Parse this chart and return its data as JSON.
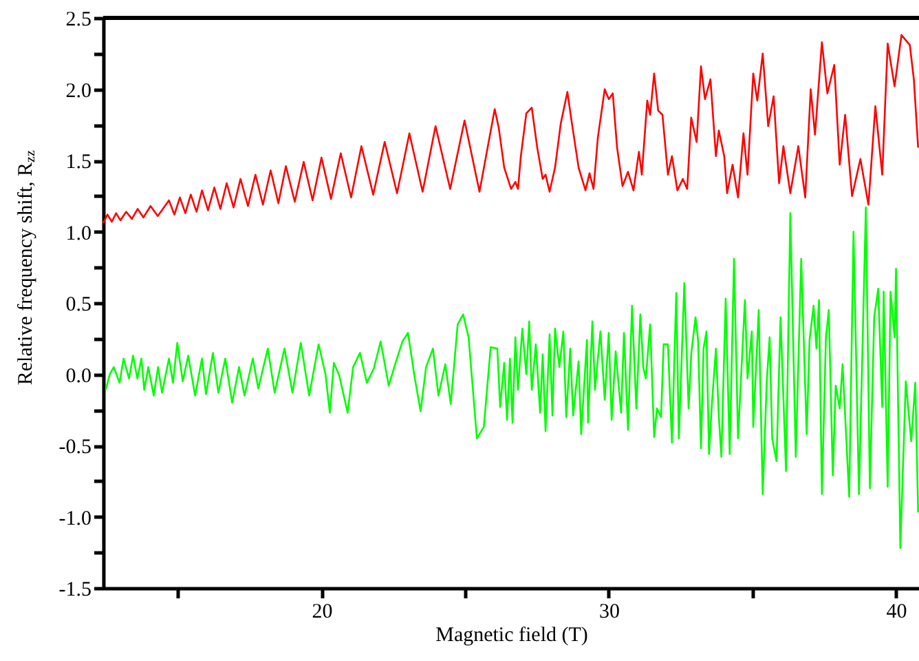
{
  "chart_data": {
    "type": "line",
    "xlabel": "Magnetic field (T)",
    "ylabel": "Relative frequency shift, R$_{zz}$",
    "xlim": [
      12.4,
      40.8
    ],
    "ylim": [
      -1.5,
      2.5
    ],
    "xticks": [
      {
        "value": 15,
        "label": null
      },
      20,
      {
        "value": 25,
        "label": null
      },
      30,
      {
        "value": 35,
        "label": null
      },
      40
    ],
    "yticks": [
      {
        "value": -1.5,
        "label": "-1.5"
      },
      {
        "value": -1.25,
        "label": null
      },
      {
        "value": -1.0,
        "label": "-1.0"
      },
      {
        "value": -0.75,
        "label": null
      },
      {
        "value": -0.5,
        "label": "-0.5"
      },
      {
        "value": -0.25,
        "label": null
      },
      {
        "value": 0,
        "label": "0.0"
      },
      {
        "value": 0.25,
        "label": null
      },
      {
        "value": 0.5,
        "label": "0.5"
      },
      {
        "value": 0.75,
        "label": null
      },
      {
        "value": 1.0,
        "label": "1.0"
      },
      {
        "value": 1.25,
        "label": null
      },
      {
        "value": 1.5,
        "label": "1.5"
      },
      {
        "value": 1.75,
        "label": null
      },
      {
        "value": 2.0,
        "label": "2.0"
      },
      {
        "value": 2.25,
        "label": null
      },
      {
        "value": 2.5,
        "label": "2.5"
      }
    ],
    "grid": false,
    "line_style": "solid",
    "marker": "none",
    "series": [
      {
        "color": "#ff0000",
        "x": [
          12.4,
          12.55,
          12.7,
          12.85,
          13.0,
          13.2,
          13.4,
          13.6,
          13.8,
          14.05,
          14.3,
          14.69,
          14.88,
          15.07,
          15.26,
          15.45,
          15.65,
          15.84,
          16.05,
          16.27,
          16.48,
          16.7,
          16.94,
          17.18,
          17.44,
          17.7,
          17.96,
          18.23,
          18.5,
          18.76,
          19.07,
          19.38,
          19.69,
          20.0,
          20.33,
          20.67,
          21.03,
          21.39,
          21.8,
          22.2,
          22.63,
          23.06,
          23.52,
          23.97,
          24.48,
          24.98,
          25.5,
          26.03,
          26.17,
          26.36,
          26.6,
          26.75,
          26.84,
          26.94,
          27.13,
          27.32,
          27.51,
          27.7,
          27.8,
          27.94,
          28.13,
          28.33,
          28.56,
          28.71,
          28.95,
          29.19,
          29.33,
          29.47,
          29.62,
          29.86,
          30.0,
          30.14,
          30.29,
          30.48,
          30.67,
          30.86,
          31.05,
          31.15,
          31.34,
          31.44,
          31.58,
          31.72,
          31.87,
          32.06,
          32.2,
          32.39,
          32.58,
          32.73,
          32.87,
          33.06,
          33.21,
          33.35,
          33.54,
          33.73,
          33.83,
          34.02,
          34.12,
          34.31,
          34.5,
          34.69,
          34.83,
          35.03,
          35.17,
          35.36,
          35.55,
          35.74,
          35.93,
          36.08,
          36.32,
          36.6,
          36.84,
          37.03,
          37.18,
          37.42,
          37.61,
          37.85,
          38.04,
          38.23,
          38.47,
          38.76,
          39.04,
          39.28,
          39.52,
          39.71,
          39.95,
          40.19,
          40.48,
          40.62,
          40.77
        ],
        "values": [
          1.06,
          1.12,
          1.07,
          1.13,
          1.08,
          1.14,
          1.09,
          1.16,
          1.1,
          1.18,
          1.11,
          1.22,
          1.12,
          1.24,
          1.13,
          1.26,
          1.14,
          1.29,
          1.15,
          1.31,
          1.16,
          1.34,
          1.17,
          1.37,
          1.18,
          1.4,
          1.19,
          1.43,
          1.2,
          1.46,
          1.21,
          1.49,
          1.22,
          1.52,
          1.23,
          1.55,
          1.24,
          1.6,
          1.26,
          1.63,
          1.27,
          1.69,
          1.28,
          1.74,
          1.3,
          1.78,
          1.28,
          1.86,
          1.73,
          1.45,
          1.3,
          1.35,
          1.3,
          1.53,
          1.83,
          1.87,
          1.59,
          1.37,
          1.4,
          1.28,
          1.45,
          1.76,
          1.98,
          1.77,
          1.45,
          1.29,
          1.41,
          1.3,
          1.66,
          2.0,
          1.93,
          1.97,
          1.59,
          1.32,
          1.42,
          1.29,
          1.56,
          1.4,
          1.92,
          1.82,
          2.11,
          1.85,
          1.82,
          1.4,
          1.53,
          1.29,
          1.37,
          1.3,
          1.8,
          1.63,
          2.16,
          1.93,
          2.07,
          1.53,
          1.71,
          1.53,
          1.27,
          1.47,
          1.24,
          1.69,
          1.4,
          2.11,
          1.92,
          2.25,
          1.74,
          1.95,
          1.34,
          1.6,
          1.27,
          1.6,
          1.24,
          2.0,
          1.68,
          2.33,
          1.97,
          2.17,
          1.47,
          1.82,
          1.25,
          1.51,
          1.19,
          1.88,
          1.4,
          2.32,
          2.02,
          2.38,
          2.31,
          2.07,
          1.59
        ]
      },
      {
        "color": "#00ff00",
        "x": [
          12.49,
          12.63,
          12.77,
          12.97,
          13.11,
          13.3,
          13.44,
          13.59,
          13.73,
          13.83,
          13.97,
          14.16,
          14.31,
          14.45,
          14.69,
          14.83,
          14.98,
          15.17,
          15.36,
          15.6,
          15.84,
          15.98,
          16.22,
          16.41,
          16.65,
          16.89,
          17.13,
          17.32,
          17.61,
          17.8,
          18.13,
          18.37,
          18.71,
          18.99,
          19.28,
          19.57,
          19.9,
          20.14,
          20.29,
          20.43,
          20.62,
          20.91,
          21.1,
          21.34,
          21.58,
          21.82,
          22.06,
          22.34,
          22.58,
          22.82,
          23.01,
          23.25,
          23.45,
          23.64,
          23.88,
          24.07,
          24.31,
          24.5,
          24.74,
          24.93,
          25.12,
          25.41,
          25.65,
          25.89,
          26.12,
          26.22,
          26.36,
          26.46,
          26.56,
          26.65,
          26.75,
          26.84,
          26.99,
          27.13,
          27.23,
          27.32,
          27.46,
          27.61,
          27.7,
          27.8,
          27.94,
          28.04,
          28.13,
          28.28,
          28.42,
          28.52,
          28.66,
          28.76,
          28.95,
          29.04,
          29.24,
          29.28,
          29.43,
          29.52,
          29.71,
          29.86,
          30.0,
          30.1,
          30.24,
          30.43,
          30.53,
          30.67,
          30.81,
          30.96,
          31.1,
          31.2,
          31.29,
          31.44,
          31.58,
          31.68,
          31.82,
          31.91,
          32.06,
          32.2,
          32.35,
          32.44,
          32.63,
          32.78,
          32.87,
          33.02,
          33.11,
          33.21,
          33.3,
          33.4,
          33.49,
          33.59,
          33.73,
          33.83,
          33.92,
          34.07,
          34.21,
          34.36,
          34.5,
          34.74,
          34.83,
          34.98,
          35.03,
          35.22,
          35.36,
          35.5,
          35.6,
          35.69,
          35.84,
          35.98,
          36.17,
          36.32,
          36.51,
          36.7,
          36.89,
          36.99,
          37.13,
          37.23,
          37.32,
          37.42,
          37.56,
          37.66,
          37.8,
          37.9,
          38.04,
          38.14,
          38.37,
          38.52,
          38.71,
          38.95,
          39.09,
          39.24,
          39.38,
          39.52,
          39.57,
          39.71,
          39.81,
          39.95,
          40.0,
          40.15,
          40.34,
          40.53,
          40.67,
          40.77
        ],
        "values": [
          -0.11,
          0.0,
          0.05,
          -0.06,
          0.11,
          -0.03,
          0.13,
          -0.03,
          0.11,
          -0.11,
          0.05,
          -0.15,
          0.05,
          -0.13,
          0.11,
          -0.06,
          0.22,
          -0.05,
          0.13,
          -0.15,
          0.11,
          -0.14,
          0.15,
          -0.13,
          0.11,
          -0.2,
          0.05,
          -0.15,
          0.11,
          -0.1,
          0.18,
          -0.13,
          0.18,
          -0.13,
          0.22,
          -0.15,
          0.21,
          0.0,
          -0.27,
          0.08,
          -0.01,
          -0.27,
          0.05,
          0.15,
          -0.06,
          0.04,
          0.23,
          -0.08,
          0.08,
          0.23,
          0.29,
          -0.03,
          -0.26,
          0.05,
          0.18,
          -0.15,
          0.07,
          -0.21,
          0.35,
          0.42,
          0.26,
          -0.45,
          -0.37,
          0.19,
          0.18,
          -0.23,
          0.08,
          -0.32,
          0.11,
          -0.34,
          0.26,
          -0.11,
          0.32,
          0.0,
          0.37,
          -0.11,
          0.21,
          -0.27,
          0.14,
          -0.4,
          0.28,
          -0.29,
          0.32,
          0.05,
          0.3,
          -0.3,
          0.18,
          -0.29,
          0.09,
          -0.42,
          0.24,
          -0.34,
          0.37,
          -0.11,
          0.3,
          -0.18,
          0.29,
          -0.32,
          0.16,
          -0.27,
          0.29,
          -0.39,
          0.48,
          -0.24,
          0.42,
          0.05,
          -0.03,
          0.35,
          -0.44,
          -0.24,
          -0.3,
          0.21,
          0.21,
          -0.48,
          0.57,
          -0.45,
          0.64,
          -0.24,
          0.14,
          0.4,
          0.24,
          -0.52,
          0.18,
          0.3,
          -0.56,
          -0.21,
          0.18,
          -0.29,
          -0.58,
          0.53,
          -0.56,
          0.81,
          -0.45,
          0.52,
          -0.03,
          0.3,
          -0.37,
          0.45,
          -0.84,
          -0.05,
          0.26,
          -0.45,
          -0.61,
          0.4,
          -0.68,
          1.13,
          -0.58,
          0.81,
          -0.42,
          0.24,
          0.48,
          0.18,
          0.52,
          -0.84,
          0.26,
          0.45,
          -0.71,
          -0.08,
          -0.24,
          0.07,
          -0.86,
          1.0,
          -0.84,
          1.17,
          -0.8,
          0.4,
          0.6,
          -0.23,
          0.58,
          -0.79,
          0.58,
          0.26,
          0.74,
          -1.22,
          -0.05,
          -0.47,
          -0.06,
          -0.97
        ]
      }
    ]
  }
}
